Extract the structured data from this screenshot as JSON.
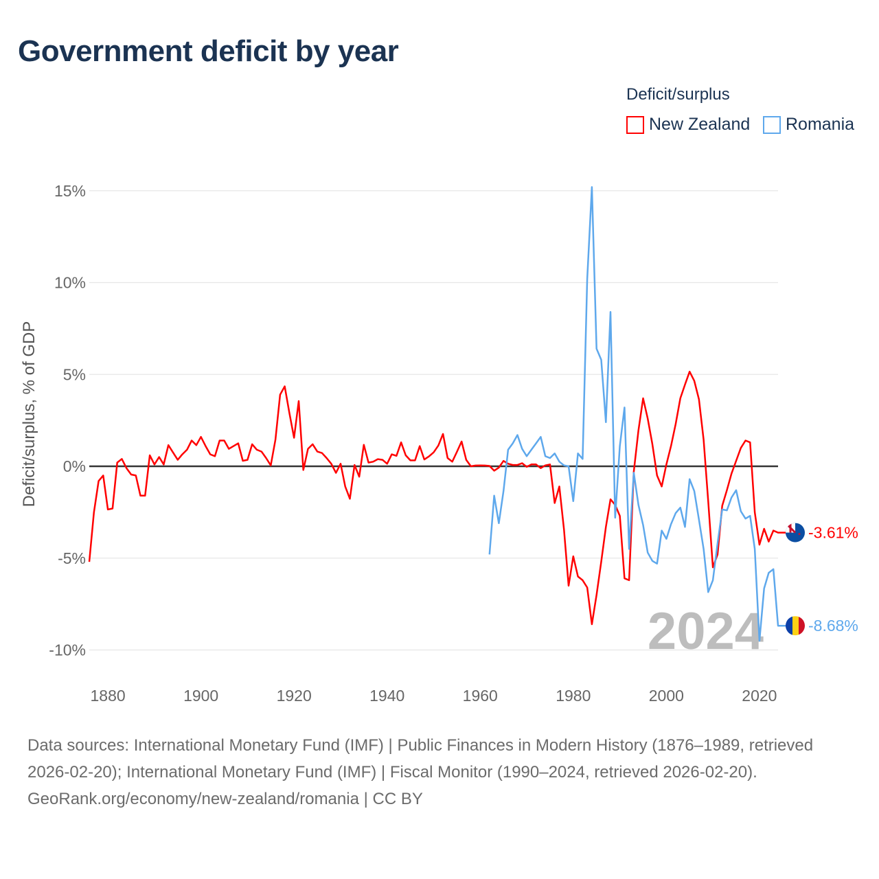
{
  "chart_data": {
    "type": "line",
    "title": "Government deficit by year",
    "ylabel": "Deficit/surplus, % of GDP",
    "xlabel": "",
    "ylim": [
      -10,
      15
    ],
    "xlim": [
      1876,
      2024
    ],
    "yticks": [
      15,
      10,
      5,
      0,
      -5,
      -10
    ],
    "ytick_labels": [
      "15%",
      "10%",
      "5%",
      "0%",
      "-5%",
      "-10%"
    ],
    "xticks": [
      1880,
      1900,
      1920,
      1940,
      1960,
      1980,
      2000,
      2020
    ],
    "xtick_labels": [
      "1880",
      "1900",
      "1920",
      "1940",
      "1960",
      "1980",
      "2000",
      "2020"
    ],
    "grid": true,
    "legend_title": "Deficit/surplus",
    "legend_position": "top-right",
    "year_overlay": "2024",
    "series": [
      {
        "name": "New Zealand",
        "color": "#ff0000",
        "start_year": 1876,
        "end_label": "-3.61%",
        "values": [
          -5.2,
          -2.5,
          -0.8,
          -0.5,
          -2.35,
          -2.3,
          0.2,
          0.4,
          -0.1,
          -0.45,
          -0.5,
          -1.6,
          -1.6,
          0.6,
          0.1,
          0.5,
          0.1,
          1.15,
          0.75,
          0.35,
          0.65,
          0.9,
          1.4,
          1.15,
          1.6,
          1.1,
          0.65,
          0.55,
          1.4,
          1.4,
          0.95,
          1.1,
          1.25,
          0.3,
          0.35,
          1.2,
          0.9,
          0.8,
          0.45,
          0.05,
          1.45,
          3.9,
          4.35,
          2.9,
          1.55,
          3.55,
          -0.2,
          0.95,
          1.2,
          0.8,
          0.72,
          0.45,
          0.14,
          -0.36,
          0.14,
          -1.1,
          -1.77,
          0.07,
          -0.57,
          1.17,
          0.2,
          0.25,
          0.39,
          0.35,
          0.14,
          0.65,
          0.57,
          1.3,
          0.6,
          0.32,
          0.32,
          1.1,
          0.37,
          0.54,
          0.76,
          1.13,
          1.76,
          0.45,
          0.25,
          0.79,
          1.35,
          0.35,
          0,
          0.04,
          0.05,
          0.04,
          0.02,
          -0.24,
          -0.07,
          0.29,
          0.14,
          0.07,
          0.07,
          0.17,
          -0.03,
          0.1,
          0.1,
          -0.1,
          0.05,
          0.1,
          -2.0,
          -1.1,
          -3.45,
          -6.5,
          -4.9,
          -6.0,
          -6.2,
          -6.6,
          -8.6,
          -7.0,
          -5.2,
          -3.3,
          -1.8,
          -2.1,
          -2.7,
          -6.1,
          -6.2,
          -0.3,
          1.95,
          3.7,
          2.6,
          1.2,
          -0.5,
          -1.1,
          0.1,
          1.1,
          2.3,
          3.7,
          4.45,
          5.15,
          4.65,
          3.65,
          1.45,
          -1.9,
          -5.5,
          -4.8,
          -2.15,
          -1.3,
          -0.4,
          0.3,
          1.0,
          1.4,
          1.3,
          -2.5,
          -4.27,
          -3.4,
          -4.1,
          -3.5,
          -3.61
        ]
      },
      {
        "name": "Romania",
        "color": "#5ea8ec",
        "start_year": 1962,
        "end_label": "-8.68%",
        "values": [
          -4.8,
          -1.6,
          -3.1,
          -1.35,
          0.9,
          1.25,
          1.7,
          0.95,
          0.55,
          0.9,
          1.25,
          1.6,
          0.55,
          0.45,
          0.7,
          0.25,
          0.05,
          0.0,
          -1.9,
          0.7,
          0.4,
          10.2,
          15.2,
          6.4,
          5.8,
          2.4,
          8.4,
          -2.8,
          1.1,
          3.2,
          -4.5,
          -0.35,
          -2.1,
          -3.2,
          -4.7,
          -5.15,
          -5.3,
          -3.5,
          -3.95,
          -3.15,
          -2.55,
          -2.25,
          -3.3,
          -0.7,
          -1.35,
          -2.9,
          -4.5,
          -6.85,
          -6.2,
          -4.2,
          -2.35,
          -2.4,
          -1.7,
          -1.3,
          -2.45,
          -2.85,
          -2.7,
          -4.5,
          -9.5,
          -6.65,
          -5.8,
          -5.6,
          -8.68
        ]
      }
    ]
  },
  "footer": {
    "sources": "Data sources: International Monetary Fund (IMF) | Public Finances in Modern History (1876–1989, retrieved 2026-02-20); International Monetary Fund (IMF) | Fiscal Monitor (1990–2024, retrieved 2026-02-20).",
    "credit": "GeoRank.org/economy/new-zealand/romania | CC BY"
  }
}
